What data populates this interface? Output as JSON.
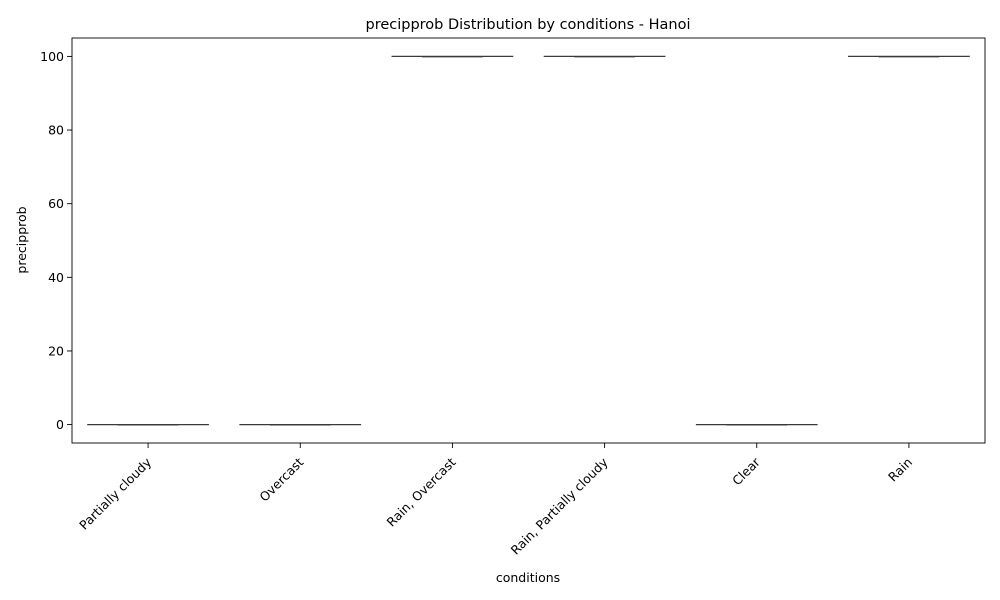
{
  "chart_data": {
    "type": "box",
    "title": "precipprob Distribution by conditions - Hanoi",
    "xlabel": "conditions",
    "ylabel": "precipprob",
    "categories": [
      "Partially cloudy",
      "Overcast",
      "Rain, Overcast",
      "Rain, Partially cloudy",
      "Clear",
      "Rain"
    ],
    "values": [
      0,
      0,
      100,
      100,
      0,
      100
    ],
    "yticks": [
      0,
      20,
      40,
      60,
      80,
      100
    ],
    "ylim": [
      -5,
      105
    ],
    "grid": false,
    "legend": "none",
    "colors": {
      "line": "#3a3a3a",
      "axis": "#000000"
    }
  }
}
